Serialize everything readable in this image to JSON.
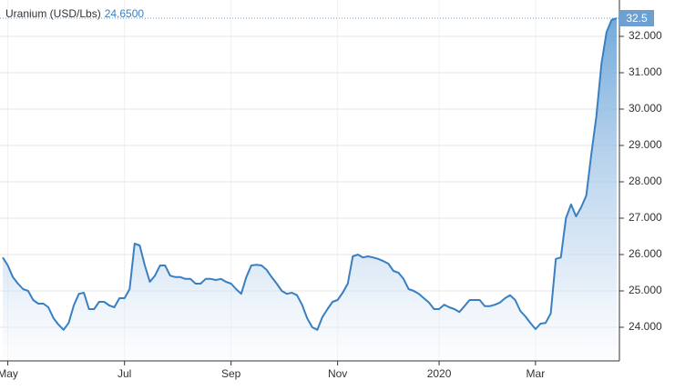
{
  "chart_data": {
    "type": "area",
    "legend_value": "24.6500",
    "categories": [
      null,
      "May",
      null,
      null,
      null,
      null,
      null,
      null,
      null,
      null,
      null,
      null,
      null,
      null,
      null,
      null,
      null,
      null,
      null,
      null,
      null,
      null,
      null,
      null,
      "Jul",
      null,
      null,
      null,
      null,
      null,
      null,
      null,
      null,
      null,
      null,
      null,
      null,
      null,
      null,
      null,
      null,
      null,
      null,
      null,
      null,
      "Sep",
      null,
      null,
      null,
      null,
      null,
      null,
      null,
      null,
      null,
      null,
      null,
      null,
      null,
      null,
      null,
      null,
      null,
      null,
      null,
      null,
      "Nov",
      null,
      null,
      null,
      null,
      null,
      null,
      null,
      null,
      null,
      null,
      null,
      null,
      null,
      null,
      null,
      null,
      null,
      null,
      null,
      "2020",
      null,
      null,
      null,
      null,
      null,
      null,
      null,
      null,
      null,
      null,
      null,
      null,
      null,
      null,
      null,
      null,
      null,
      null,
      "Mar",
      null,
      null,
      null,
      null,
      null,
      null,
      null,
      null,
      null,
      null,
      null,
      null,
      null,
      null,
      null,
      null
    ],
    "series": [
      {
        "name": "Uranium (USD/Lbs)",
        "color": "#3a7fc1",
        "values": [
          25.92,
          25.7,
          25.38,
          25.2,
          25.05,
          25.0,
          24.75,
          24.65,
          24.65,
          24.55,
          24.25,
          24.07,
          23.93,
          24.12,
          24.6,
          24.92,
          24.95,
          24.5,
          24.5,
          24.7,
          24.7,
          24.6,
          24.55,
          24.8,
          24.8,
          25.05,
          26.3,
          26.25,
          25.7,
          25.25,
          25.42,
          25.7,
          25.7,
          25.42,
          25.38,
          25.38,
          25.33,
          25.33,
          25.2,
          25.2,
          25.33,
          25.33,
          25.3,
          25.33,
          25.25,
          25.2,
          25.05,
          24.92,
          25.38,
          25.7,
          25.72,
          25.7,
          25.58,
          25.38,
          25.2,
          25.0,
          24.92,
          24.95,
          24.88,
          24.62,
          24.25,
          24.0,
          23.93,
          24.28,
          24.5,
          24.7,
          24.75,
          24.95,
          25.2,
          25.95,
          26.0,
          25.92,
          25.95,
          25.92,
          25.88,
          25.82,
          25.75,
          25.55,
          25.5,
          25.33,
          25.05,
          25.0,
          24.92,
          24.8,
          24.68,
          24.5,
          24.5,
          24.62,
          24.55,
          24.5,
          24.42,
          24.58,
          24.75,
          24.75,
          24.75,
          24.58,
          24.58,
          24.62,
          24.68,
          24.8,
          24.88,
          24.75,
          24.45,
          24.3,
          24.12,
          23.95,
          24.1,
          24.12,
          24.38,
          25.88,
          25.92,
          27.0,
          27.38,
          27.05,
          27.3,
          27.62,
          28.75,
          29.8,
          31.25,
          32.12,
          32.45,
          32.5
        ]
      }
    ],
    "last_price": {
      "value": 32.5,
      "label": "32.5"
    },
    "ylim": [
      23.075,
      33.0
    ],
    "yticks": [
      {
        "value": 24,
        "label": "24.000"
      },
      {
        "value": 25,
        "label": "25.000"
      },
      {
        "value": 26,
        "label": "26.000"
      },
      {
        "value": 27,
        "label": "27.000"
      },
      {
        "value": 28,
        "label": "28.000"
      },
      {
        "value": 29,
        "label": "29.000"
      },
      {
        "value": 30,
        "label": "30.000"
      },
      {
        "value": 31,
        "label": "31.000"
      },
      {
        "value": 32,
        "label": "32.000"
      }
    ],
    "grid": true
  }
}
